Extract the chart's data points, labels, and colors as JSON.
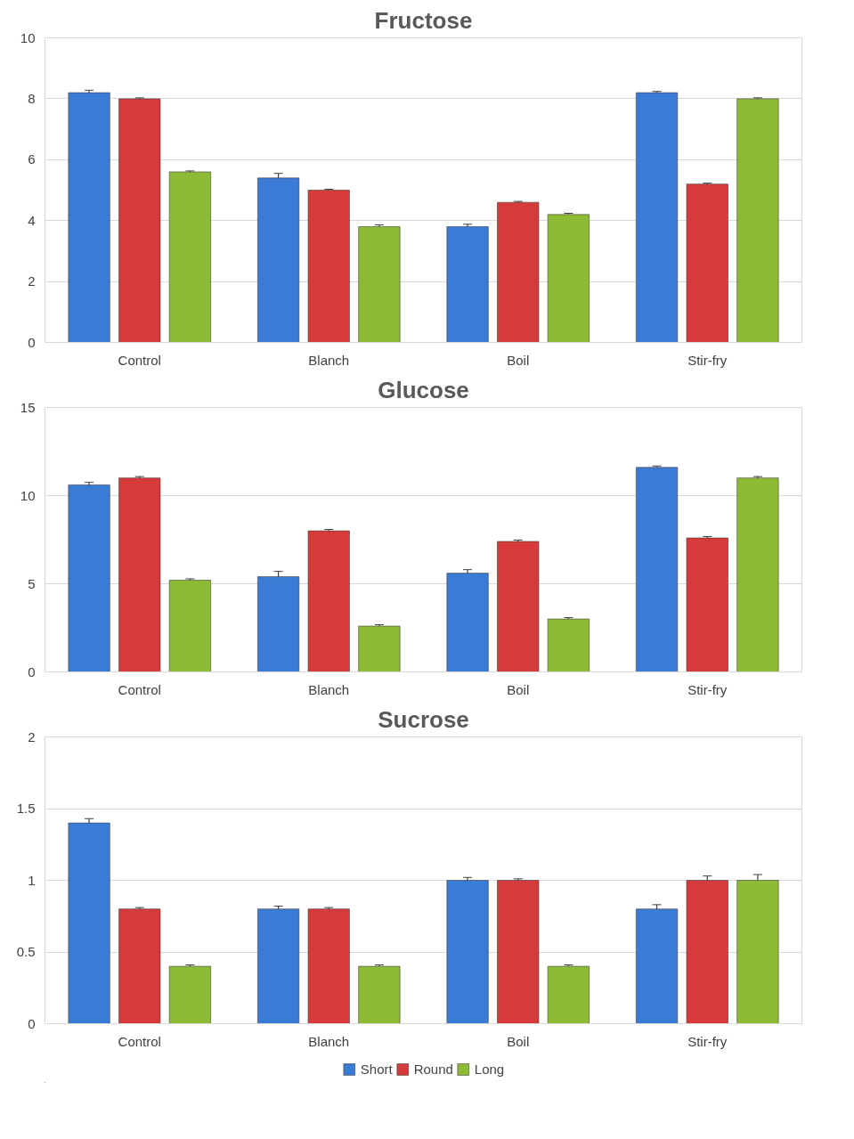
{
  "chart_data": [
    {
      "type": "bar",
      "title": "Fructose",
      "categories": [
        "Control",
        "Blanch",
        "Boil",
        "Stir-fry"
      ],
      "ylim": [
        0,
        10
      ],
      "yticks": [
        0,
        2,
        4,
        6,
        8,
        10
      ],
      "grid": "y",
      "series": [
        {
          "color": "#3a7bd5",
          "values": [
            8.2,
            5.4,
            3.8,
            8.2
          ],
          "errors": [
            0.08,
            0.15,
            0.08,
            0.04
          ]
        },
        {
          "color": "#d63a3a",
          "values": [
            8.0,
            5.0,
            4.6,
            5.2
          ],
          "errors": [
            0.03,
            0.03,
            0.03,
            0.03
          ]
        },
        {
          "color": "#8dbb35",
          "values": [
            5.6,
            3.8,
            4.2,
            8.0
          ],
          "errors": [
            0.03,
            0.06,
            0.04,
            0.03
          ]
        }
      ]
    },
    {
      "type": "bar",
      "title": "Glucose",
      "categories": [
        "Control",
        "Blanch",
        "Boil",
        "Stir-fry"
      ],
      "ylim": [
        0,
        15
      ],
      "yticks": [
        0,
        5,
        10,
        15
      ],
      "grid": "y",
      "series": [
        {
          "color": "#3a7bd5",
          "values": [
            10.6,
            5.4,
            5.6,
            11.6
          ],
          "errors": [
            0.15,
            0.3,
            0.2,
            0.08
          ]
        },
        {
          "color": "#d63a3a",
          "values": [
            11.0,
            8.0,
            7.4,
            7.6
          ],
          "errors": [
            0.08,
            0.08,
            0.08,
            0.08
          ]
        },
        {
          "color": "#8dbb35",
          "values": [
            5.2,
            2.6,
            3.0,
            11.0
          ],
          "errors": [
            0.08,
            0.08,
            0.08,
            0.08
          ]
        }
      ]
    },
    {
      "type": "bar",
      "title": "Sucrose",
      "categories": [
        "Control",
        "Blanch",
        "Boil",
        "Stir-fry"
      ],
      "ylim": [
        0,
        2
      ],
      "yticks": [
        0,
        0.5,
        1,
        1.5,
        2
      ],
      "grid": "y",
      "legend": "bottom",
      "series": [
        {
          "name": "Short",
          "color": "#3a7bd5",
          "values": [
            1.4,
            0.8,
            1.0,
            0.8
          ],
          "errors": [
            0.03,
            0.02,
            0.02,
            0.03
          ]
        },
        {
          "name": "Round",
          "color": "#d63a3a",
          "values": [
            0.8,
            0.8,
            1.0,
            1.0
          ],
          "errors": [
            0.01,
            0.01,
            0.01,
            0.03
          ]
        },
        {
          "name": "Long",
          "color": "#8dbb35",
          "values": [
            0.4,
            0.4,
            0.4,
            1.0
          ],
          "errors": [
            0.01,
            0.01,
            0.01,
            0.04
          ]
        }
      ]
    }
  ]
}
